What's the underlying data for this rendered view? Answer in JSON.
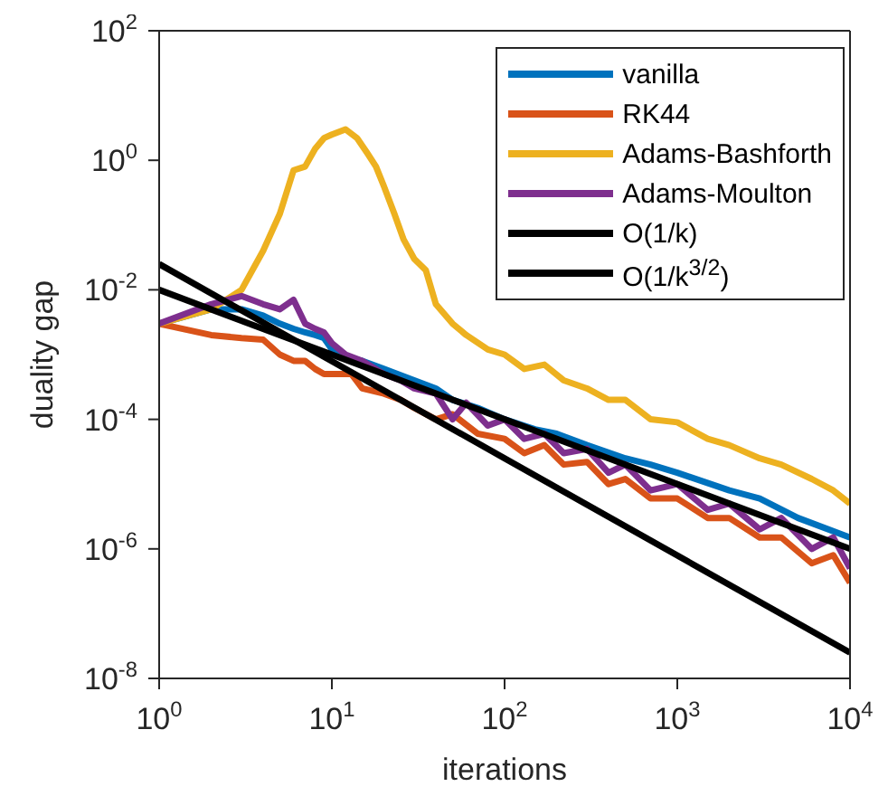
{
  "chart_data": {
    "type": "line",
    "xlabel": "iterations",
    "ylabel": "duality gap",
    "log": "xy",
    "legend": "top right",
    "xlim": [
      1,
      10000
    ],
    "ylim": [
      1e-08,
      100
    ],
    "xticks": [
      {
        "value": 1,
        "label": "10$^{0}$"
      },
      {
        "value": 10,
        "label": "10$^{1}$"
      },
      {
        "value": 100,
        "label": "10$^{2}$"
      },
      {
        "value": 1000,
        "label": "10$^{3}$"
      },
      {
        "value": 10000,
        "label": "10$^{4}$"
      }
    ],
    "yticks": [
      {
        "value": 1e-08,
        "label": "10$^{-8}$"
      },
      {
        "value": 1e-06,
        "label": "10$^{-6}$"
      },
      {
        "value": 0.0001,
        "label": "10$^{-4}$"
      },
      {
        "value": 0.01,
        "label": "10$^{-2}$"
      },
      {
        "value": 1,
        "label": "10$^{0}$"
      },
      {
        "value": 100,
        "label": "10$^{2}$"
      }
    ],
    "series": [
      {
        "name": "vanilla",
        "color": "#0072bd",
        "x": [
          1,
          2,
          3,
          4,
          5,
          6,
          7,
          8,
          9,
          10,
          12,
          15,
          20,
          30,
          40,
          50,
          70,
          100,
          150,
          200,
          300,
          500,
          700,
          1000,
          2000,
          3000,
          5000,
          10000
        ],
        "values": [
          0.003,
          0.005,
          0.005,
          0.004,
          0.003,
          0.0025,
          0.0022,
          0.002,
          0.0018,
          0.0012,
          0.0009,
          0.0008,
          0.0006,
          0.0004,
          0.0003,
          0.0002,
          0.00015,
          0.0001,
          7e-05,
          6e-05,
          4e-05,
          2.5e-05,
          2e-05,
          1.5e-05,
          8e-06,
          6e-06,
          3e-06,
          1.5e-06
        ]
      },
      {
        "name": "RK44",
        "color": "#d95319",
        "x": [
          1,
          2,
          3,
          4,
          5,
          6,
          7,
          8,
          9,
          10,
          13,
          15,
          20,
          25,
          30,
          40,
          50,
          70,
          100,
          130,
          170,
          220,
          300,
          400,
          500,
          700,
          1000,
          1500,
          2000,
          3000,
          4000,
          6000,
          8000,
          10000
        ],
        "values": [
          0.003,
          0.002,
          0.0018,
          0.0017,
          0.001,
          0.0008,
          0.0008,
          0.0006,
          0.0005,
          0.0005,
          0.0005,
          0.0003,
          0.00025,
          0.0002,
          0.00015,
          0.0001,
          0.00012,
          6e-05,
          5e-05,
          3e-05,
          4e-05,
          2e-05,
          2.2e-05,
          1e-05,
          1.2e-05,
          6e-06,
          6e-06,
          3e-06,
          3e-06,
          1.5e-06,
          1.5e-06,
          6e-07,
          8e-07,
          3e-07
        ]
      },
      {
        "name": "Adams-Bashforth",
        "color": "#edb120",
        "x": [
          1,
          2,
          3,
          4,
          5,
          6,
          7,
          8,
          9,
          10,
          12,
          14,
          16,
          18,
          20,
          23,
          26,
          30,
          35,
          40,
          50,
          60,
          80,
          100,
          130,
          170,
          220,
          300,
          400,
          500,
          700,
          1000,
          1500,
          2000,
          3000,
          4000,
          6000,
          8000,
          10000
        ],
        "values": [
          0.003,
          0.005,
          0.01,
          0.04,
          0.15,
          0.7,
          0.8,
          1.5,
          2.2,
          2.5,
          3,
          2.2,
          1.3,
          0.8,
          0.4,
          0.15,
          0.06,
          0.03,
          0.02,
          0.006,
          0.003,
          0.002,
          0.0012,
          0.001,
          0.0006,
          0.0007,
          0.0004,
          0.0003,
          0.0002,
          0.0002,
          0.0001,
          9e-05,
          5e-05,
          4e-05,
          2.5e-05,
          2e-05,
          1.2e-05,
          8e-06,
          5e-06
        ]
      },
      {
        "name": "Adams-Moulton",
        "color": "#7e2f8e",
        "x": [
          1,
          2,
          3,
          4,
          5,
          6,
          7,
          8,
          9,
          10,
          12,
          15,
          20,
          25,
          30,
          40,
          50,
          60,
          80,
          100,
          130,
          170,
          220,
          300,
          400,
          500,
          700,
          1000,
          1500,
          2000,
          3000,
          4000,
          6000,
          8000,
          10000
        ],
        "values": [
          0.003,
          0.006,
          0.008,
          0.006,
          0.005,
          0.007,
          0.003,
          0.0025,
          0.0022,
          0.0015,
          0.001,
          0.0008,
          0.0005,
          0.0004,
          0.0003,
          0.00025,
          0.0001,
          0.00018,
          8e-05,
          0.0001,
          5e-05,
          6e-05,
          3e-05,
          3.5e-05,
          1.5e-05,
          2e-05,
          8e-06,
          1e-05,
          4e-06,
          5e-06,
          2e-06,
          3e-06,
          1e-06,
          1.5e-06,
          5e-07
        ]
      },
      {
        "name": "O(1/k)",
        "color": "#000000",
        "x": [
          1,
          10000
        ],
        "values": [
          0.01,
          1e-06
        ]
      },
      {
        "name": "O(1/k$^{3/2}$)",
        "color": "#000000",
        "x": [
          1,
          10000
        ],
        "values": [
          0.025,
          2.5e-08
        ]
      }
    ]
  }
}
